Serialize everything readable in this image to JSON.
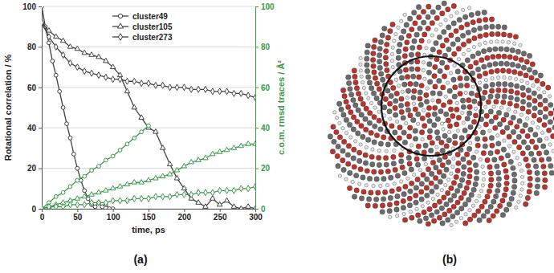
{
  "chart_data": {
    "type": "line",
    "x_label": "time, ps",
    "y_label": "Rotational correlation / %",
    "y2_label": "c.o.m. rmsd traces / Å²",
    "xlim": [
      0,
      300
    ],
    "xticks": [
      0,
      50,
      100,
      150,
      200,
      250,
      300
    ],
    "ylim": [
      0,
      100
    ],
    "yticks": [
      0,
      20,
      40,
      60,
      80,
      100
    ],
    "y2lim": [
      0,
      100
    ],
    "y2ticks": [
      0,
      20,
      40,
      60,
      80,
      100
    ],
    "grid": true,
    "legend": "upper center",
    "series": [
      {
        "name": "cluster49",
        "color": "#404040",
        "marker": "circle",
        "x": [
          0,
          5,
          10,
          15,
          20,
          25,
          30,
          35,
          40,
          45,
          50,
          55,
          60,
          65,
          70,
          75,
          80,
          85,
          90,
          95,
          100
        ],
        "values": [
          100,
          90,
          82,
          73,
          66,
          58,
          50,
          42,
          35,
          27,
          20,
          14,
          9,
          5,
          2,
          1,
          3,
          1,
          2,
          0,
          0
        ]
      },
      {
        "name": "cluster105",
        "color": "#404040",
        "marker": "triangle",
        "x": [
          0,
          10,
          20,
          30,
          40,
          50,
          60,
          70,
          80,
          90,
          100,
          110,
          120,
          130,
          140,
          150,
          160,
          170,
          180,
          190,
          200,
          210,
          220,
          230,
          240,
          250,
          260,
          270,
          280,
          290,
          300
        ],
        "values": [
          92,
          88,
          85,
          83,
          80,
          79,
          77,
          76,
          75,
          73,
          70,
          66,
          58,
          50,
          45,
          40,
          38,
          30,
          22,
          15,
          10,
          5,
          3,
          1,
          5,
          2,
          4,
          1,
          0,
          1,
          0
        ]
      },
      {
        "name": "cluster273",
        "color": "#404040",
        "marker": "diamond",
        "x": [
          0,
          10,
          20,
          30,
          40,
          50,
          60,
          70,
          80,
          90,
          100,
          110,
          120,
          130,
          140,
          150,
          160,
          170,
          180,
          190,
          200,
          210,
          220,
          230,
          240,
          250,
          260,
          270,
          280,
          290,
          300
        ],
        "values": [
          92,
          85,
          80,
          76,
          72,
          70,
          68,
          67,
          66,
          65,
          64,
          64,
          63,
          63,
          62,
          62,
          61,
          61,
          60,
          60,
          60,
          59,
          59,
          59,
          58,
          58,
          58,
          57,
          57,
          56,
          55
        ]
      },
      {
        "color": "#3a9a48",
        "marker": "circle",
        "axis": "y2",
        "x": [
          0,
          10,
          20,
          30,
          40,
          50,
          60,
          70,
          80,
          90,
          100,
          110,
          120,
          130,
          140,
          150
        ],
        "values": [
          0,
          3,
          6,
          8,
          11,
          14,
          16,
          19,
          21,
          24,
          26,
          29,
          32,
          35,
          38,
          41
        ]
      },
      {
        "color": "#3a9a48",
        "marker": "triangle",
        "axis": "y2",
        "x": [
          0,
          10,
          20,
          30,
          40,
          50,
          60,
          70,
          80,
          90,
          100,
          110,
          120,
          130,
          140,
          150,
          160,
          170,
          180,
          190,
          200,
          210,
          220,
          230,
          240,
          250,
          260,
          270,
          280,
          290,
          300
        ],
        "values": [
          0,
          1,
          2,
          3,
          4,
          5,
          6,
          7,
          8,
          9,
          10,
          11,
          12,
          13,
          13,
          14,
          15,
          16,
          17,
          19,
          21,
          23,
          24,
          25,
          27,
          28,
          29,
          30,
          31,
          32,
          32
        ]
      },
      {
        "color": "#3a9a48",
        "marker": "diamond",
        "axis": "y2",
        "x": [
          0,
          10,
          20,
          30,
          40,
          50,
          60,
          70,
          80,
          90,
          100,
          110,
          120,
          130,
          140,
          150,
          160,
          170,
          180,
          190,
          200,
          210,
          220,
          230,
          240,
          250,
          260,
          270,
          280,
          290,
          300
        ],
        "values": [
          0,
          1,
          1,
          1,
          2,
          2,
          2,
          3,
          3,
          3,
          4,
          4,
          4,
          5,
          5,
          5,
          6,
          6,
          6,
          7,
          7,
          7,
          8,
          8,
          8,
          9,
          9,
          9,
          10,
          10,
          11
        ]
      }
    ]
  },
  "panels": [
    {
      "label": "(a)"
    },
    {
      "label": "(b)"
    }
  ]
}
